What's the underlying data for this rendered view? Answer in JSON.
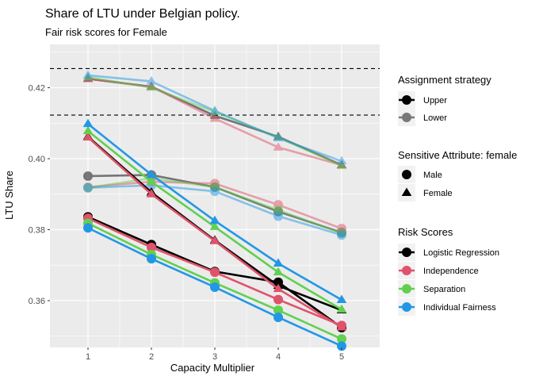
{
  "chart_data": {
    "type": "line",
    "title": "Share of LTU under Belgian policy.",
    "subtitle": "Fair risk scores for Female",
    "xlabel": "Capacity Multiplier",
    "ylabel": "LTU  Share",
    "x": [
      1,
      2,
      3,
      4,
      5
    ],
    "xlim": [
      0.4,
      5.6
    ],
    "ylim": [
      0.3468,
      0.4322
    ],
    "yticks": [
      0.36,
      0.38,
      0.4,
      0.42
    ],
    "ytick_labels": [
      "0.36",
      "0.38",
      "0.40",
      "0.42"
    ],
    "xtick_labels": [
      "1",
      "2",
      "3",
      "4",
      "5"
    ],
    "grid": true,
    "hlines": [
      0.4254,
      0.4123
    ],
    "colors": {
      "logistic_regression": "#000000",
      "independence": "#DF536B",
      "separation": "#61D04F",
      "individual_fairness": "#2297E6"
    },
    "series": [
      {
        "risk": "logistic_regression",
        "strategy": "upper",
        "attr": "male",
        "values": [
          0.3836,
          0.3758,
          0.3682,
          0.3652,
          0.3524
        ]
      },
      {
        "risk": "logistic_regression",
        "strategy": "upper",
        "attr": "female",
        "values": [
          0.4062,
          0.3905,
          0.377,
          0.3642,
          0.3573
        ]
      },
      {
        "risk": "logistic_regression",
        "strategy": "lower",
        "attr": "male",
        "values": [
          0.3951,
          0.3954,
          0.392,
          0.3851,
          0.3792
        ]
      },
      {
        "risk": "logistic_regression",
        "strategy": "lower",
        "attr": "female",
        "values": [
          0.4225,
          0.4203,
          0.4121,
          0.4062,
          0.3982
        ]
      },
      {
        "risk": "independence",
        "strategy": "upper",
        "attr": "male",
        "values": [
          0.3832,
          0.375,
          0.368,
          0.3603,
          0.353
        ]
      },
      {
        "risk": "independence",
        "strategy": "upper",
        "attr": "female",
        "values": [
          0.406,
          0.39,
          0.3768,
          0.3633,
          0.3525
        ]
      },
      {
        "risk": "independence",
        "strategy": "lower",
        "attr": "male",
        "values": [
          0.392,
          0.3935,
          0.393,
          0.387,
          0.3803
        ]
      },
      {
        "risk": "independence",
        "strategy": "lower",
        "attr": "female",
        "values": [
          0.4225,
          0.4203,
          0.4113,
          0.4032,
          0.3982
        ]
      },
      {
        "risk": "separation",
        "strategy": "upper",
        "attr": "male",
        "values": [
          0.3818,
          0.373,
          0.365,
          0.3573,
          0.3492
        ]
      },
      {
        "risk": "separation",
        "strategy": "upper",
        "attr": "female",
        "values": [
          0.4078,
          0.3935,
          0.3808,
          0.368,
          0.3575
        ]
      },
      {
        "risk": "separation",
        "strategy": "lower",
        "attr": "male",
        "values": [
          0.3918,
          0.3945,
          0.392,
          0.3855,
          0.379
        ]
      },
      {
        "risk": "separation",
        "strategy": "lower",
        "attr": "female",
        "values": [
          0.423,
          0.42,
          0.4132,
          0.406,
          0.398
        ]
      },
      {
        "risk": "individual_fairness",
        "strategy": "upper",
        "attr": "male",
        "values": [
          0.3805,
          0.3718,
          0.3638,
          0.3553,
          0.3472
        ]
      },
      {
        "risk": "individual_fairness",
        "strategy": "upper",
        "attr": "female",
        "values": [
          0.4098,
          0.3955,
          0.3825,
          0.3705,
          0.3602
        ]
      },
      {
        "risk": "individual_fairness",
        "strategy": "lower",
        "attr": "male",
        "values": [
          0.3918,
          0.3925,
          0.3908,
          0.3838,
          0.3785
        ]
      },
      {
        "risk": "individual_fairness",
        "strategy": "lower",
        "attr": "female",
        "values": [
          0.4235,
          0.4218,
          0.4135,
          0.4058,
          0.3993
        ]
      }
    ],
    "legends": [
      {
        "title": "Assignment strategy",
        "kind": "alpha",
        "entries": [
          {
            "key": "upper",
            "label": "Upper"
          },
          {
            "key": "lower",
            "label": "Lower"
          }
        ]
      },
      {
        "title": "Sensitive Attribute: female",
        "kind": "shape",
        "entries": [
          {
            "key": "male",
            "label": "Male"
          },
          {
            "key": "female",
            "label": "Female"
          }
        ]
      },
      {
        "title": "Risk Scores",
        "kind": "color",
        "entries": [
          {
            "key": "logistic_regression",
            "label": "Logistic Regression"
          },
          {
            "key": "independence",
            "label": "Independence"
          },
          {
            "key": "separation",
            "label": "Separation"
          },
          {
            "key": "individual_fairness",
            "label": "Individual Fairness"
          }
        ]
      }
    ],
    "legend_position": "right"
  }
}
